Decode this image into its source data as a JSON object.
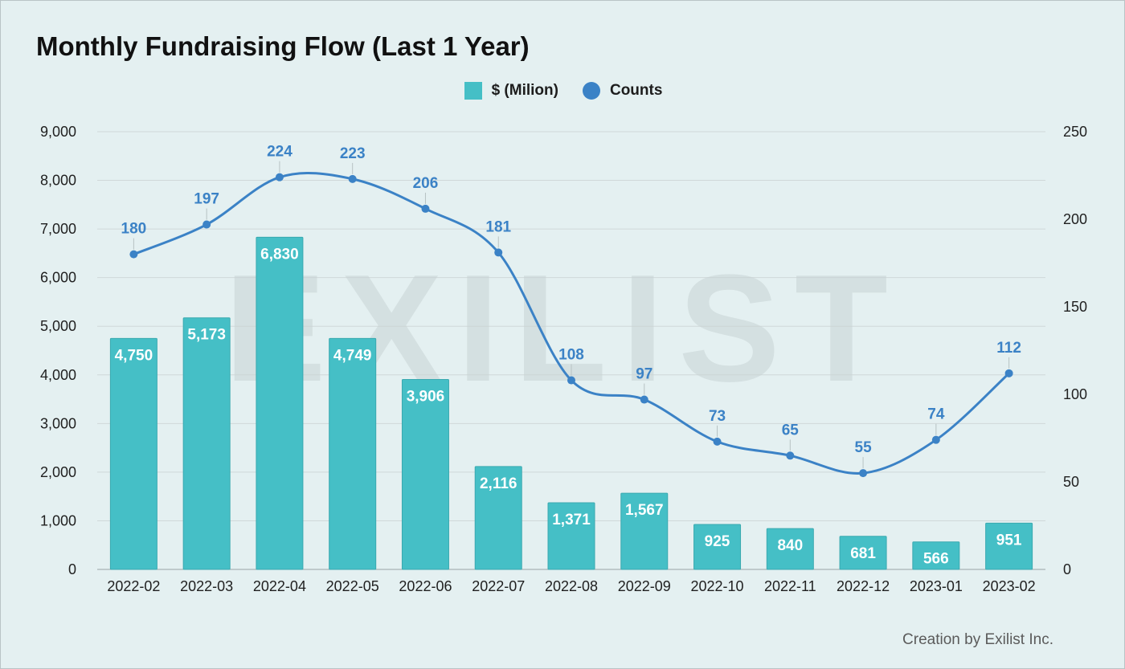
{
  "title": "Monthly Fundraising Flow (Last 1 Year)",
  "legend": {
    "bars_label": "$ (Milion)",
    "line_label": "Counts"
  },
  "watermark": "EXILIST",
  "credit": "Creation by Exilist Inc.",
  "colors": {
    "background": "#e4f0f1",
    "bar": "#45bfc6",
    "line": "#3b82c6",
    "grid": "#cfd8d9"
  },
  "chart_data": {
    "type": "bar",
    "title": "Monthly Fundraising Flow (Last 1 Year)",
    "categories": [
      "2022-02",
      "2022-03",
      "2022-04",
      "2022-05",
      "2022-06",
      "2022-07",
      "2022-08",
      "2022-09",
      "2022-10",
      "2022-11",
      "2022-12",
      "2023-01",
      "2023-02"
    ],
    "series": [
      {
        "name": "$ (Milion)",
        "type": "bar",
        "axis": "left",
        "values": [
          4750,
          5173,
          6830,
          4749,
          3906,
          2116,
          1371,
          1567,
          925,
          840,
          681,
          566,
          951
        ],
        "labels": [
          "4,750",
          "5,173",
          "6,830",
          "4,749",
          "3,906",
          "2,116",
          "1,371",
          "1,567",
          "925",
          "840",
          "681",
          "566",
          "951"
        ]
      },
      {
        "name": "Counts",
        "type": "line",
        "axis": "right",
        "smooth": true,
        "values": [
          180,
          197,
          224,
          223,
          206,
          181,
          108,
          97,
          73,
          65,
          55,
          74,
          112
        ]
      }
    ],
    "y_left": {
      "ylim": [
        0,
        9000
      ],
      "ticks": [
        0,
        1000,
        2000,
        3000,
        4000,
        5000,
        6000,
        7000,
        8000,
        9000
      ],
      "tick_labels": [
        "0",
        "1,000",
        "2,000",
        "3,000",
        "4,000",
        "5,000",
        "6,000",
        "7,000",
        "8,000",
        "9,000"
      ]
    },
    "y_right": {
      "ylim": [
        0,
        250
      ],
      "ticks": [
        0,
        50,
        100,
        150,
        200,
        250
      ],
      "tick_labels": [
        "0",
        "50",
        "100",
        "150",
        "200",
        "250"
      ]
    },
    "grid": true,
    "legend_position": "top-center"
  }
}
